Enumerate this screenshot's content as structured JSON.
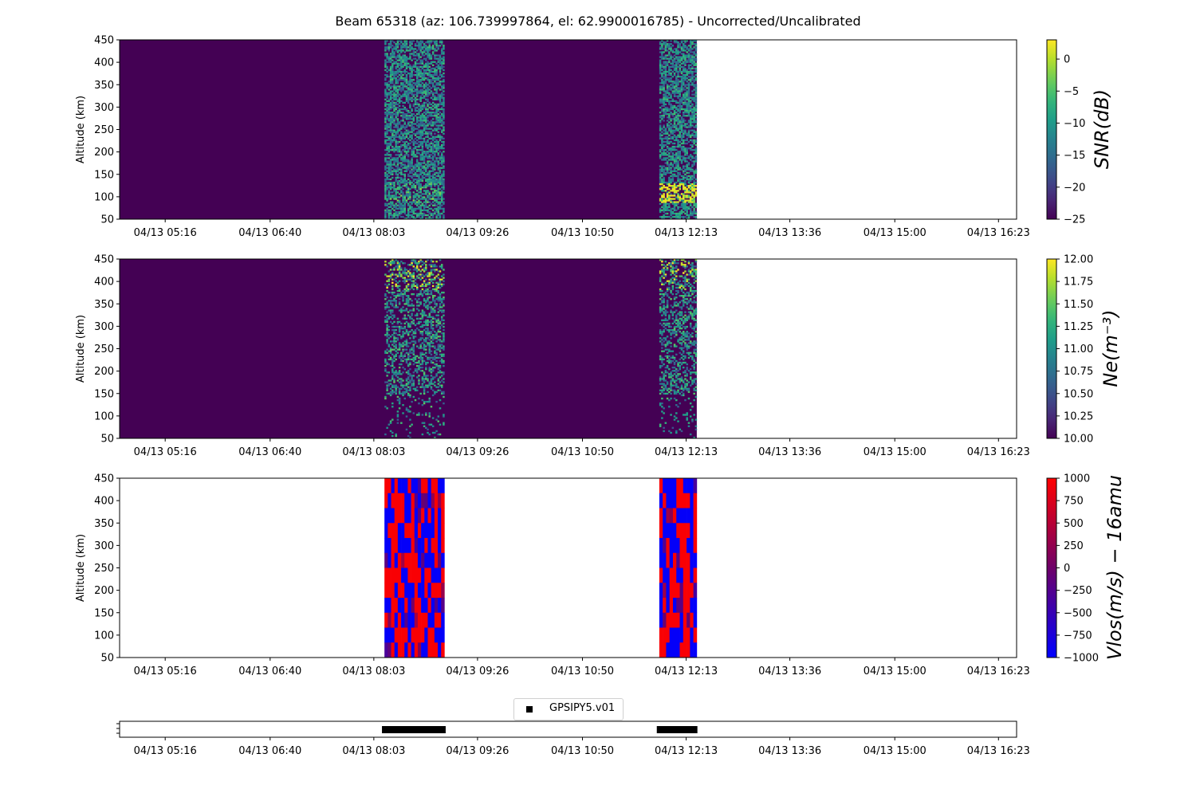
{
  "title": "Beam 65318 (az: 106.739997864, el: 62.9900016785) - Uncorrected/Uncalibrated",
  "time_ticks": [
    "04/13 05:16",
    "04/13 06:40",
    "04/13 08:03",
    "04/13 09:26",
    "04/13 10:50",
    "04/13 12:13",
    "04/13 13:36",
    "04/13 15:00",
    "04/13 16:23"
  ],
  "time_tick_minutes": [
    316,
    400,
    483,
    566,
    650,
    733,
    816,
    900,
    983
  ],
  "x_range_minutes": [
    279.5,
    997.5
  ],
  "data_windows_minutes": [
    [
      491.5,
      539.5
    ],
    [
      711.5,
      741.5
    ]
  ],
  "colors": {
    "viridis_dark": "#440154",
    "vlos_red": "#ff0000",
    "vlos_blue": "#0000ff"
  },
  "chart_data": [
    {
      "type": "heatmap",
      "title": "",
      "xlabel": "",
      "ylabel": "Altitude (km)",
      "ylim": [
        50,
        450
      ],
      "yticks": [
        50,
        100,
        150,
        200,
        250,
        300,
        350,
        400,
        450
      ],
      "colorbar": {
        "label": "SNR(dB)",
        "range": [
          -25,
          3
        ],
        "ticks": [
          0,
          -5,
          -10,
          -15,
          -20,
          -25
        ],
        "tick_labels": [
          "0",
          "−5",
          "−10",
          "−15",
          "−20",
          "−25"
        ],
        "colormap": "viridis"
      },
      "background_value": -25,
      "notes": "Noisy return in two windows; enhanced layer near 100 km altitude in second window"
    },
    {
      "type": "heatmap",
      "title": "",
      "xlabel": "",
      "ylabel": "Altitude (km)",
      "ylim": [
        50,
        450
      ],
      "yticks": [
        50,
        100,
        150,
        200,
        250,
        300,
        350,
        400,
        450
      ],
      "colorbar": {
        "label": "Ne(m⁻³)",
        "range": [
          10.0,
          12.0
        ],
        "ticks": [
          12.0,
          11.75,
          11.5,
          11.25,
          11.0,
          10.75,
          10.5,
          10.25,
          10.0
        ],
        "tick_labels": [
          "12.00",
          "11.75",
          "11.50",
          "11.25",
          "11.00",
          "10.75",
          "10.50",
          "10.25",
          "10.00"
        ],
        "colormap": "viridis"
      },
      "background_value": 10.0
    },
    {
      "type": "heatmap",
      "title": "",
      "xlabel": "",
      "ylabel": "Altitude (km)",
      "ylim": [
        50,
        450
      ],
      "yticks": [
        50,
        100,
        150,
        200,
        250,
        300,
        350,
        400,
        450
      ],
      "colorbar": {
        "label": "Vlos(m/s) − 16amu",
        "range": [
          -1000,
          1000
        ],
        "ticks": [
          1000,
          750,
          500,
          250,
          0,
          -250,
          -500,
          -750,
          -1000
        ],
        "tick_labels": [
          "1000",
          "750",
          "500",
          "250",
          "0",
          "−250",
          "−500",
          "−750",
          "−1000"
        ],
        "colormap": "bwr"
      },
      "background_value": null
    },
    {
      "type": "bar",
      "title": "",
      "legend": [
        "GPSIPY5.v01"
      ],
      "legend_position": "top-center",
      "segments_minutes": [
        [
          489.5,
          540.5
        ],
        [
          709.5,
          742
        ]
      ]
    }
  ]
}
